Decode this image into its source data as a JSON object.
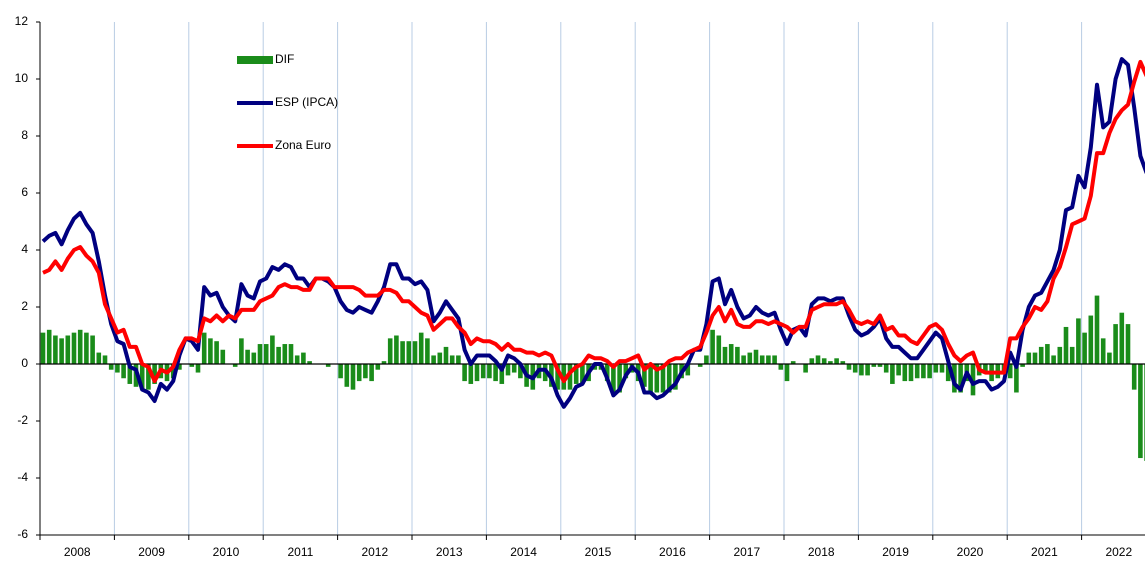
{
  "chart_data": {
    "type": "bar_line",
    "categories": [
      "2008",
      null,
      null,
      null,
      null,
      null,
      null,
      null,
      null,
      null,
      null,
      null,
      "2009",
      null,
      null,
      null,
      null,
      null,
      null,
      null,
      null,
      null,
      null,
      null,
      "2010",
      null,
      null,
      null,
      null,
      null,
      null,
      null,
      null,
      null,
      null,
      null,
      "2011",
      null,
      null,
      null,
      null,
      null,
      null,
      null,
      null,
      null,
      null,
      null,
      "2012",
      null,
      null,
      null,
      null,
      null,
      null,
      null,
      null,
      null,
      null,
      null,
      "2013",
      null,
      null,
      null,
      null,
      null,
      null,
      null,
      null,
      null,
      null,
      null,
      "2014",
      null,
      null,
      null,
      null,
      null,
      null,
      null,
      null,
      null,
      null,
      null,
      "2015",
      null,
      null,
      null,
      null,
      null,
      null,
      null,
      null,
      null,
      null,
      null,
      "2016",
      null,
      null,
      null,
      null,
      null,
      null,
      null,
      null,
      null,
      null,
      null,
      "2017",
      null,
      null,
      null,
      null,
      null,
      null,
      null,
      null,
      null,
      null,
      null,
      "2018",
      null,
      null,
      null,
      null,
      null,
      null,
      null,
      null,
      null,
      null,
      null,
      "2019",
      null,
      null,
      null,
      null,
      null,
      null,
      null,
      null,
      null,
      null,
      null,
      "2020",
      null,
      null,
      null,
      null,
      null,
      null,
      null,
      null,
      null,
      null,
      null,
      "2021",
      null,
      null,
      null,
      null,
      null,
      null,
      null,
      null,
      null,
      null,
      null,
      "2022",
      null,
      null,
      null,
      null,
      null,
      null,
      null,
      null,
      null,
      null
    ],
    "series": [
      {
        "name": "DIF",
        "type": "bar",
        "color": "#1a8c1a",
        "values": [
          1.1,
          1.2,
          1.0,
          0.9,
          1.0,
          1.1,
          1.2,
          1.1,
          1.0,
          0.4,
          0.3,
          -0.2,
          -0.3,
          -0.5,
          -0.7,
          -0.8,
          -0.9,
          -0.9,
          -0.7,
          -0.5,
          -0.6,
          -0.5,
          -0.2,
          0.0,
          -0.1,
          -0.3,
          1.1,
          0.9,
          0.8,
          0.5,
          0.0,
          -0.1,
          0.9,
          0.5,
          0.4,
          0.7,
          0.7,
          1.0,
          0.6,
          0.7,
          0.7,
          0.3,
          0.4,
          0.1,
          0.0,
          0.0,
          -0.1,
          0.0,
          -0.5,
          -0.8,
          -0.9,
          -0.6,
          -0.5,
          -0.6,
          -0.2,
          0.1,
          0.9,
          1.0,
          0.8,
          0.8,
          0.8,
          1.1,
          0.9,
          0.3,
          0.4,
          0.6,
          0.3,
          0.3,
          -0.6,
          -0.7,
          -0.6,
          -0.5,
          -0.5,
          -0.6,
          -0.7,
          -0.4,
          -0.3,
          -0.5,
          -0.8,
          -0.9,
          -0.5,
          -0.6,
          -0.8,
          -0.9,
          -0.9,
          -0.9,
          -0.7,
          -0.7,
          -0.6,
          -0.2,
          -0.2,
          -0.6,
          -1.0,
          -1.0,
          -0.5,
          -0.3,
          -0.6,
          -0.8,
          -1.0,
          -1.0,
          -1.0,
          -1.0,
          -0.9,
          -0.5,
          -0.4,
          0.0,
          -0.1,
          0.3,
          1.2,
          1.0,
          0.6,
          0.7,
          0.6,
          0.3,
          0.4,
          0.5,
          0.3,
          0.3,
          0.3,
          -0.2,
          -0.6,
          0.1,
          0.0,
          -0.3,
          0.2,
          0.3,
          0.2,
          0.1,
          0.2,
          0.1,
          -0.2,
          -0.3,
          -0.4,
          -0.4,
          -0.1,
          -0.1,
          -0.3,
          -0.7,
          -0.4,
          -0.6,
          -0.6,
          -0.5,
          -0.5,
          -0.5,
          -0.3,
          -0.3,
          -0.6,
          -1.0,
          -1.0,
          -0.6,
          -1.1,
          -0.4,
          -0.3,
          -0.6,
          -0.5,
          -0.3,
          -0.5,
          -1.0,
          -0.1,
          0.4,
          0.4,
          0.6,
          0.7,
          0.3,
          0.6,
          1.3,
          0.6,
          1.6,
          1.1,
          1.7,
          2.4,
          0.9,
          0.4,
          1.4,
          1.8,
          1.4,
          -0.9,
          -3.3,
          -3.4
        ]
      },
      {
        "name": "ESP (IPCA)",
        "type": "line",
        "color": "#000080",
        "values": [
          4.3,
          4.5,
          4.6,
          4.2,
          4.7,
          5.1,
          5.3,
          4.9,
          4.6,
          3.6,
          2.4,
          1.4,
          0.8,
          0.7,
          -0.1,
          -0.2,
          -0.9,
          -1.0,
          -1.3,
          -0.7,
          -0.9,
          -0.6,
          0.3,
          0.9,
          0.8,
          0.5,
          2.7,
          2.4,
          2.5,
          2.0,
          1.7,
          1.5,
          2.8,
          2.4,
          2.3,
          2.9,
          3.0,
          3.4,
          3.3,
          3.5,
          3.4,
          3.0,
          3.0,
          2.7,
          3.0,
          3.0,
          2.9,
          2.7,
          2.2,
          1.9,
          1.8,
          2.0,
          1.9,
          1.8,
          2.2,
          2.7,
          3.5,
          3.5,
          3.0,
          3.0,
          2.8,
          2.9,
          2.6,
          1.5,
          1.8,
          2.2,
          1.9,
          1.6,
          0.5,
          0.0,
          0.3,
          0.3,
          0.3,
          0.1,
          -0.2,
          0.3,
          0.2,
          0.0,
          -0.4,
          -0.5,
          -0.2,
          -0.2,
          -0.5,
          -1.1,
          -1.5,
          -1.2,
          -0.8,
          -0.7,
          -0.3,
          0.0,
          0.0,
          -0.5,
          -1.1,
          -0.9,
          -0.4,
          -0.1,
          -0.3,
          -1.0,
          -1.0,
          -1.2,
          -1.1,
          -0.9,
          -0.7,
          -0.3,
          0.0,
          0.5,
          0.5,
          1.4,
          2.9,
          3.0,
          2.1,
          2.6,
          2.0,
          1.6,
          1.7,
          2.0,
          1.8,
          1.7,
          1.8,
          1.2,
          0.7,
          1.2,
          1.3,
          1.0,
          2.1,
          2.3,
          2.3,
          2.2,
          2.3,
          2.3,
          1.7,
          1.2,
          1.0,
          1.1,
          1.3,
          1.6,
          0.9,
          0.6,
          0.6,
          0.4,
          0.2,
          0.2,
          0.5,
          0.8,
          1.1,
          0.9,
          0.1,
          -0.7,
          -0.9,
          -0.3,
          -0.7,
          -0.6,
          -0.6,
          -0.9,
          -0.8,
          -0.6,
          0.4,
          -0.1,
          1.2,
          2.0,
          2.4,
          2.5,
          2.9,
          3.3,
          4.0,
          5.4,
          5.5,
          6.6,
          6.2,
          7.6,
          9.8,
          8.3,
          8.5,
          10.0,
          10.7,
          10.5,
          9.0,
          7.3,
          6.7
        ]
      },
      {
        "name": "Zona Euro",
        "type": "line",
        "color": "#ff0000",
        "values": [
          3.2,
          3.3,
          3.6,
          3.3,
          3.7,
          4.0,
          4.1,
          3.8,
          3.6,
          3.2,
          2.1,
          1.6,
          1.1,
          1.2,
          0.6,
          0.6,
          0.0,
          -0.1,
          -0.6,
          -0.2,
          -0.3,
          -0.1,
          0.5,
          0.9,
          0.9,
          0.8,
          1.6,
          1.5,
          1.7,
          1.5,
          1.7,
          1.6,
          1.9,
          1.9,
          1.9,
          2.2,
          2.3,
          2.4,
          2.7,
          2.8,
          2.7,
          2.7,
          2.6,
          2.6,
          3.0,
          3.0,
          3.0,
          2.7,
          2.7,
          2.7,
          2.7,
          2.6,
          2.4,
          2.4,
          2.4,
          2.6,
          2.6,
          2.5,
          2.2,
          2.2,
          2.0,
          1.8,
          1.7,
          1.2,
          1.4,
          1.6,
          1.6,
          1.3,
          1.1,
          0.7,
          0.9,
          0.8,
          0.8,
          0.7,
          0.5,
          0.7,
          0.5,
          0.5,
          0.4,
          0.4,
          0.3,
          0.4,
          0.3,
          -0.2,
          -0.6,
          -0.3,
          -0.1,
          0.0,
          0.3,
          0.2,
          0.2,
          0.1,
          -0.1,
          0.1,
          0.1,
          0.2,
          0.3,
          -0.2,
          0.0,
          -0.2,
          -0.1,
          0.1,
          0.2,
          0.2,
          0.4,
          0.5,
          0.6,
          1.1,
          1.7,
          2.0,
          1.5,
          1.9,
          1.4,
          1.3,
          1.3,
          1.5,
          1.5,
          1.4,
          1.5,
          1.4,
          1.3,
          1.1,
          1.3,
          1.3,
          1.9,
          2.0,
          2.1,
          2.1,
          2.1,
          2.2,
          1.9,
          1.5,
          1.4,
          1.5,
          1.4,
          1.7,
          1.2,
          1.3,
          1.0,
          1.0,
          0.8,
          0.7,
          1.0,
          1.3,
          1.4,
          1.2,
          0.7,
          0.3,
          0.1,
          0.3,
          0.4,
          -0.2,
          -0.3,
          -0.3,
          -0.3,
          -0.3,
          0.9,
          0.9,
          1.3,
          1.6,
          2.0,
          1.9,
          2.2,
          3.0,
          3.4,
          4.1,
          4.9,
          5.0,
          5.1,
          5.9,
          7.4,
          7.4,
          8.1,
          8.6,
          8.9,
          9.1,
          9.9,
          10.6,
          10.1
        ]
      }
    ],
    "ylim": [
      -6,
      12
    ],
    "yticks": [
      -6,
      -4,
      -2,
      0,
      2,
      4,
      6,
      8,
      10,
      12
    ],
    "legend": "upper left"
  }
}
